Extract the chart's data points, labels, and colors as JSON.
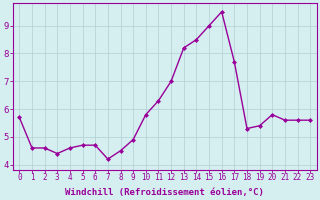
{
  "x": [
    0,
    1,
    2,
    3,
    4,
    5,
    6,
    7,
    8,
    9,
    10,
    11,
    12,
    13,
    14,
    15,
    16,
    17,
    18,
    19,
    20,
    21,
    22,
    23
  ],
  "y": [
    5.7,
    4.6,
    4.6,
    4.4,
    4.6,
    4.7,
    4.7,
    4.2,
    4.5,
    4.9,
    5.8,
    6.3,
    7.0,
    8.2,
    8.5,
    9.0,
    9.5,
    7.7,
    5.3,
    5.4,
    5.8,
    5.6,
    5.6,
    5.6
  ],
  "line_color": "#990099",
  "marker": "D",
  "marker_size": 2,
  "line_width": 1.0,
  "background_color": "#d5eef0",
  "grid_color": "#b0d0d4",
  "xlabel": "Windchill (Refroidissement éolien,°C)",
  "xlabel_fontsize": 6.5,
  "ylabel_ticks": [
    4,
    5,
    6,
    7,
    8,
    9
  ],
  "ylim": [
    3.8,
    9.8
  ],
  "xlim": [
    -0.5,
    23.5
  ],
  "tick_color": "#990099",
  "xtick_fontsize": 5.5,
  "ytick_fontsize": 6.5,
  "border_color": "#990099",
  "spine_color": "#990099"
}
